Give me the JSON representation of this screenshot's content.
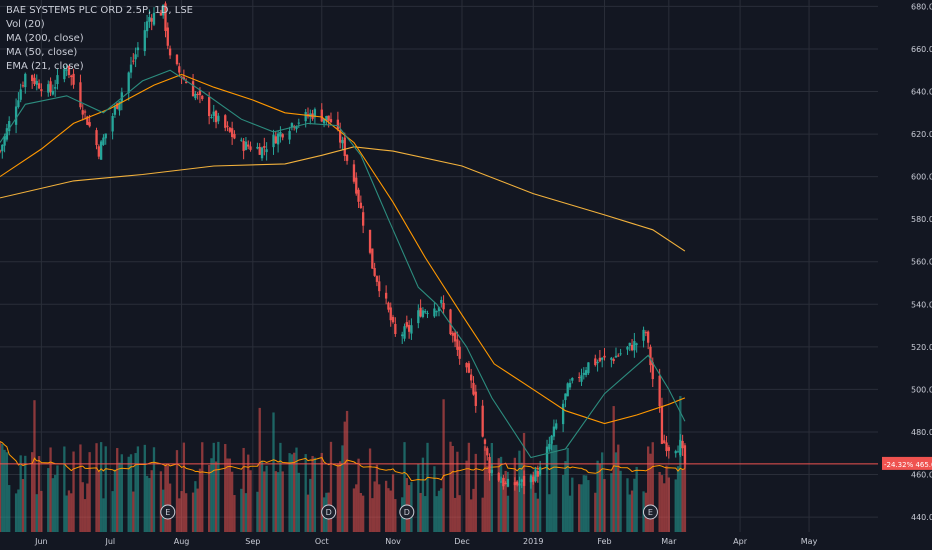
{
  "legend": {
    "title": "BAE SYSTEMS PLC ORD 2.5P, 1D, LSE",
    "vol": "Vol (20)",
    "ma200": "MA (200, close)",
    "ma50": "MA (50, close)",
    "ema21": "EMA (21, close)"
  },
  "colors": {
    "background": "#131722",
    "grid": "#2a2e39",
    "up": "#26a69a",
    "down": "#ef5350",
    "ma200": "#f2b13c",
    "ma50": "#ff9800",
    "ema21": "#2c8c7e",
    "vol_ma": "#ff9800",
    "price_line": "#ef5350",
    "text": "#c9ccd6"
  },
  "price_label": {
    "change": "-24.32%",
    "price": "465.0"
  },
  "earnings_markers": [
    "E",
    "D",
    "D",
    "E"
  ],
  "chart_data": {
    "type": "candlestick",
    "title": "BAE SYSTEMS PLC ORD 2.5P, 1D, LSE",
    "x_axis": {
      "ticks": [
        "Jun",
        "Jul",
        "Aug",
        "Sep",
        "Oct",
        "Nov",
        "Dec",
        "2019",
        "Feb",
        "Mar",
        "Apr",
        "May"
      ],
      "range": [
        "2018-05-14",
        "2019-05-31"
      ]
    },
    "y_axis": {
      "ticks": [
        "440.0",
        "460.0",
        "480.0",
        "500.0",
        "520.0",
        "540.0",
        "560.0",
        "580.0",
        "600.0",
        "620.0",
        "640.0",
        "660.0",
        "680.0"
      ],
      "range": [
        433,
        683
      ],
      "position": "right"
    },
    "grid": true,
    "last_price": 465.0,
    "change_pct": -24.32,
    "close_waypoints": [
      [
        "2018-05-14",
        612
      ],
      [
        "2018-05-25",
        648
      ],
      [
        "2018-06-05",
        640
      ],
      [
        "2018-06-12",
        652
      ],
      [
        "2018-06-26",
        612
      ],
      [
        "2018-07-06",
        640
      ],
      [
        "2018-07-18",
        675
      ],
      [
        "2018-07-24",
        678
      ],
      [
        "2018-07-27",
        655
      ],
      [
        "2018-08-06",
        640
      ],
      [
        "2018-08-15",
        628
      ],
      [
        "2018-08-27",
        615
      ],
      [
        "2018-09-05",
        613
      ],
      [
        "2018-09-18",
        625
      ],
      [
        "2018-09-28",
        630
      ],
      [
        "2018-10-05",
        626
      ],
      [
        "2018-10-10",
        615
      ],
      [
        "2018-10-16",
        595
      ],
      [
        "2018-10-23",
        558
      ],
      [
        "2018-10-29",
        540
      ],
      [
        "2018-11-02",
        525
      ],
      [
        "2018-11-08",
        528
      ],
      [
        "2018-11-13",
        537
      ],
      [
        "2018-11-22",
        540
      ],
      [
        "2018-11-30",
        515
      ],
      [
        "2018-12-06",
        500
      ],
      [
        "2018-12-10",
        478
      ],
      [
        "2018-12-13",
        463
      ],
      [
        "2018-12-20",
        455
      ],
      [
        "2018-12-28",
        456
      ],
      [
        "2019-01-04",
        462
      ],
      [
        "2019-01-10",
        480
      ],
      [
        "2019-01-16",
        500
      ],
      [
        "2019-01-25",
        512
      ],
      [
        "2019-02-05",
        515
      ],
      [
        "2019-02-15",
        522
      ],
      [
        "2019-02-19",
        527
      ],
      [
        "2019-02-22",
        505
      ],
      [
        "2019-02-25",
        490
      ],
      [
        "2019-02-26",
        476
      ],
      [
        "2019-03-01",
        473
      ],
      [
        "2019-03-06",
        474
      ],
      [
        "2019-03-08",
        465
      ]
    ],
    "series": [
      {
        "name": "MA (200, close)",
        "points": [
          [
            "2018-05-14",
            590
          ],
          [
            "2018-06-15",
            598
          ],
          [
            "2018-07-15",
            601
          ],
          [
            "2018-08-15",
            605
          ],
          [
            "2018-09-15",
            606
          ],
          [
            "2018-10-01",
            610
          ],
          [
            "2018-10-15",
            614
          ],
          [
            "2018-11-01",
            612
          ],
          [
            "2018-12-01",
            605
          ],
          [
            "2019-01-01",
            592
          ],
          [
            "2019-02-01",
            582
          ],
          [
            "2019-02-22",
            575
          ],
          [
            "2019-03-08",
            565
          ]
        ]
      },
      {
        "name": "MA (50, close)",
        "points": [
          [
            "2018-05-14",
            600
          ],
          [
            "2018-06-01",
            613
          ],
          [
            "2018-06-15",
            625
          ],
          [
            "2018-07-01",
            632
          ],
          [
            "2018-07-20",
            643
          ],
          [
            "2018-08-01",
            648
          ],
          [
            "2018-08-15",
            642
          ],
          [
            "2018-09-01",
            636
          ],
          [
            "2018-09-15",
            630
          ],
          [
            "2018-10-01",
            628
          ],
          [
            "2018-10-15",
            616
          ],
          [
            "2018-11-01",
            588
          ],
          [
            "2018-11-15",
            562
          ],
          [
            "2018-12-01",
            535
          ],
          [
            "2018-12-15",
            512
          ],
          [
            "2019-01-01",
            500
          ],
          [
            "2019-01-15",
            490
          ],
          [
            "2019-02-01",
            484
          ],
          [
            "2019-02-15",
            488
          ],
          [
            "2019-03-01",
            493
          ],
          [
            "2019-03-08",
            496
          ]
        ]
      },
      {
        "name": "EMA (21, close)",
        "points": [
          [
            "2018-05-14",
            616
          ],
          [
            "2018-05-25",
            634
          ],
          [
            "2018-06-12",
            638
          ],
          [
            "2018-06-28",
            630
          ],
          [
            "2018-07-15",
            645
          ],
          [
            "2018-07-27",
            650
          ],
          [
            "2018-08-10",
            640
          ],
          [
            "2018-08-27",
            627
          ],
          [
            "2018-09-10",
            621
          ],
          [
            "2018-09-25",
            625
          ],
          [
            "2018-10-08",
            624
          ],
          [
            "2018-10-18",
            610
          ],
          [
            "2018-10-30",
            580
          ],
          [
            "2018-11-12",
            548
          ],
          [
            "2018-11-20",
            540
          ],
          [
            "2018-12-03",
            520
          ],
          [
            "2018-12-14",
            496
          ],
          [
            "2018-12-31",
            468
          ],
          [
            "2019-01-15",
            472
          ],
          [
            "2019-02-01",
            498
          ],
          [
            "2019-02-20",
            516
          ],
          [
            "2019-03-01",
            500
          ],
          [
            "2019-03-08",
            485
          ]
        ]
      }
    ],
    "volume": {
      "panel": "bottom overlay",
      "has_ma": true
    }
  }
}
